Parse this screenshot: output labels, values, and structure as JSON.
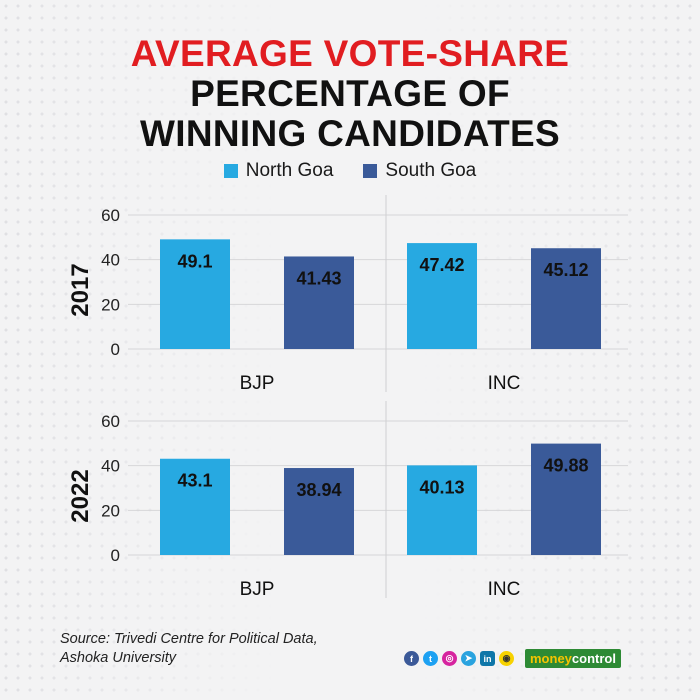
{
  "title": {
    "line1": "AVERAGE VOTE-SHARE",
    "line2": "PERCENTAGE OF",
    "line3": "WINNING CANDIDATES"
  },
  "colors": {
    "title_accent": "#e11d21",
    "north_goa": "#27a9e1",
    "south_goa": "#3a5a99",
    "grid": "#d6d6d8",
    "divider": "#cfcfd2"
  },
  "legend": [
    {
      "label": "North Goa",
      "color": "#27a9e1"
    },
    {
      "label": "South Goa",
      "color": "#3a5a99"
    }
  ],
  "chart_data": [
    {
      "type": "bar",
      "panel_label": "2017",
      "categories": [
        "BJP",
        "INC"
      ],
      "series": [
        {
          "name": "North Goa",
          "values": [
            49.1,
            47.42
          ]
        },
        {
          "name": "South Goa",
          "values": [
            41.43,
            45.12
          ]
        }
      ],
      "value_labels": [
        [
          "49.1",
          "47.42"
        ],
        [
          "41.43",
          "45.12"
        ]
      ],
      "ylim": [
        0,
        60
      ],
      "yticks": [
        0,
        20,
        40,
        60
      ],
      "grid": true
    },
    {
      "type": "bar",
      "panel_label": "2022",
      "categories": [
        "BJP",
        "INC"
      ],
      "series": [
        {
          "name": "North Goa",
          "values": [
            43.1,
            40.13
          ]
        },
        {
          "name": "South Goa",
          "values": [
            38.94,
            49.88
          ]
        }
      ],
      "value_labels": [
        [
          "43.1",
          "40.13"
        ],
        [
          "38.94",
          "49.88"
        ]
      ],
      "ylim": [
        0,
        60
      ],
      "yticks": [
        0,
        20,
        40,
        60
      ],
      "grid": true
    }
  ],
  "source": {
    "line1": "Source: Trivedi Centre for Political Data,",
    "line2": "Ashoka University"
  },
  "social_icons": [
    "facebook-icon",
    "twitter-icon",
    "instagram-icon",
    "telegram-icon",
    "linkedin-icon",
    "snapchat-icon"
  ],
  "brand": {
    "part1": "money",
    "part2": "control"
  }
}
